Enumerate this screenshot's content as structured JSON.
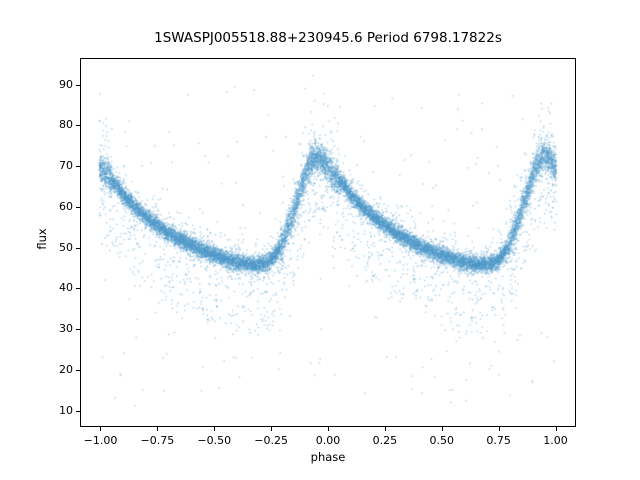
{
  "chart_data": {
    "type": "scatter",
    "title": "1SWASPJ005518.88+230945.6 Period 6798.17822s",
    "xlabel": "phase",
    "ylabel": "flux",
    "xlim": [
      -1.09,
      1.09
    ],
    "ylim": [
      6,
      96.5
    ],
    "xticks": [
      -1.0,
      -0.75,
      -0.5,
      -0.25,
      0.0,
      0.25,
      0.5,
      0.75,
      1.0
    ],
    "xtick_labels": [
      "−1.00",
      "−0.75",
      "−0.50",
      "−0.25",
      "0.00",
      "0.25",
      "0.50",
      "0.75",
      "1.00"
    ],
    "yticks": [
      10,
      20,
      30,
      40,
      50,
      60,
      70,
      80,
      90
    ],
    "ytick_labels": [
      "10",
      "20",
      "30",
      "40",
      "50",
      "60",
      "70",
      "80",
      "90"
    ],
    "marker_color": "#4c96c8",
    "marker_alpha": 0.45,
    "marker_size_px": 1.4,
    "n_points": 16000,
    "seed": 42,
    "x_range": [
      -1.005,
      1.005
    ],
    "profile": {
      "comment": "mean folded light curve: flux vs phase (phase mod 1, peak near 0.96)",
      "phase": [
        0.0,
        0.02,
        0.05,
        0.08,
        0.1,
        0.15,
        0.2,
        0.25,
        0.3,
        0.35,
        0.4,
        0.45,
        0.5,
        0.55,
        0.6,
        0.65,
        0.7,
        0.73,
        0.76,
        0.79,
        0.82,
        0.85,
        0.88,
        0.9,
        0.92,
        0.94,
        0.96,
        0.98,
        1.0
      ],
      "flux": [
        69.5,
        68.5,
        66.5,
        64.5,
        63.0,
        60.0,
        57.5,
        55.5,
        53.5,
        52.0,
        50.5,
        49.3,
        48.2,
        47.2,
        46.4,
        45.9,
        45.8,
        46.2,
        47.5,
        50.0,
        54.0,
        59.0,
        64.5,
        68.0,
        70.5,
        72.0,
        72.3,
        71.2,
        69.5
      ]
    },
    "noise": {
      "core_sigma": 1.0,
      "broad_sigma": 3.2,
      "broad_frac": 0.1,
      "faint_frac": 0.04,
      "faint_offset_min": 5,
      "faint_offset_max": 17,
      "outlier_frac": 0.015,
      "outlier_low": 11,
      "outlier_high": 90,
      "rise_widen": 1.9
    }
  }
}
